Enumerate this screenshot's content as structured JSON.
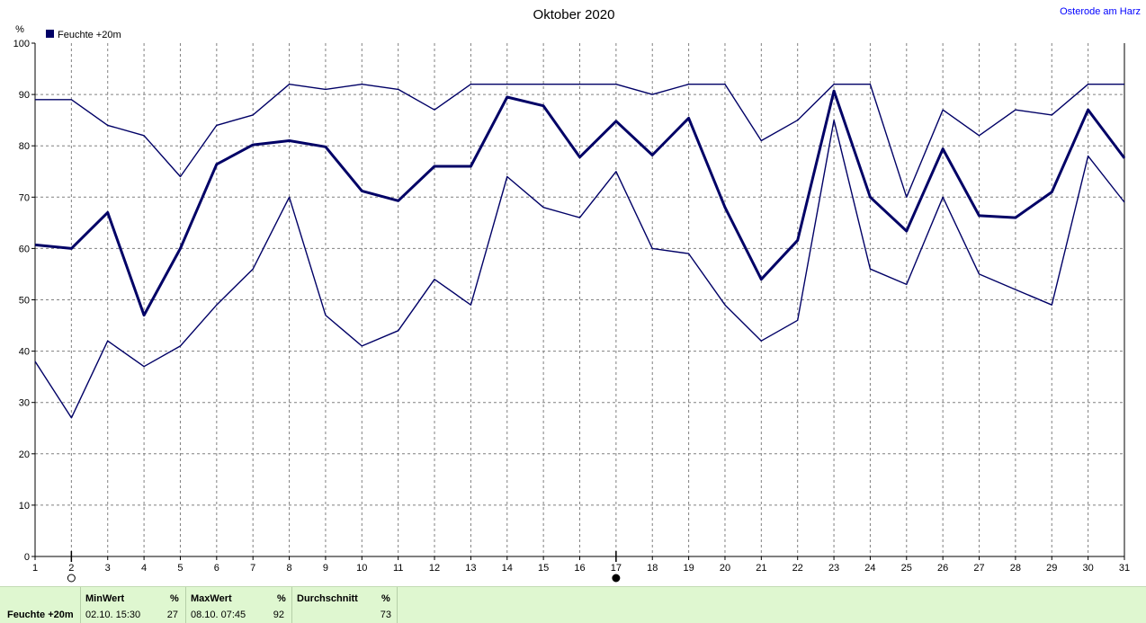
{
  "chart_data": {
    "type": "line",
    "title": "Oktober 2020",
    "location": "Osterode am Harz",
    "ylabel": "%",
    "xlabel": "",
    "ylim": [
      0,
      100
    ],
    "yticks": [
      0,
      10,
      20,
      30,
      40,
      50,
      60,
      70,
      80,
      90,
      100
    ],
    "x": [
      1,
      2,
      3,
      4,
      5,
      6,
      7,
      8,
      9,
      10,
      11,
      12,
      13,
      14,
      15,
      16,
      17,
      18,
      19,
      20,
      21,
      22,
      23,
      24,
      25,
      26,
      27,
      28,
      29,
      30,
      31
    ],
    "grid": true,
    "legend": {
      "position": "top-left",
      "label": "Feuchte +20m",
      "color": "#000066"
    },
    "series": [
      {
        "role": "max",
        "values": [
          89,
          89,
          84,
          82,
          74,
          84,
          86,
          92,
          91,
          92,
          91,
          87,
          92,
          92,
          92,
          92,
          92,
          90,
          92,
          92,
          81,
          85,
          92,
          92,
          70,
          87,
          82,
          87,
          86,
          92,
          92
        ],
        "color": "#000066"
      },
      {
        "role": "mean",
        "values": [
          60.7,
          60,
          67,
          47,
          60,
          76.4,
          80.2,
          81,
          79.8,
          71.2,
          69.3,
          76,
          76,
          89.5,
          87.8,
          77.8,
          84.8,
          78.2,
          85.4,
          68,
          54,
          61.6,
          90.7,
          70,
          63.4,
          79.4,
          66.4,
          66,
          71,
          87,
          77.6
        ],
        "color": "#000066"
      },
      {
        "role": "min",
        "values": [
          38,
          27,
          42,
          37,
          41,
          49,
          56,
          70,
          47,
          41,
          44,
          54,
          49,
          74,
          68,
          66,
          75,
          60,
          59,
          49,
          42,
          46,
          85,
          56,
          53,
          70,
          55,
          52,
          49,
          78,
          69
        ],
        "color": "#000066"
      }
    ],
    "markers": [
      {
        "day": 2,
        "kind": "min",
        "style": "hollow-circle"
      },
      {
        "day": 17,
        "kind": "max",
        "style": "filled-circle"
      }
    ]
  },
  "stats": {
    "series_label": "Feuchte +20m",
    "min": {
      "label": "MinWert",
      "unit": "%",
      "when": "02.10.  15:30",
      "value": "27"
    },
    "max": {
      "label": "MaxWert",
      "unit": "%",
      "when": "08.10.  07:45",
      "value": "92"
    },
    "avg": {
      "label": "Durchschnitt",
      "unit": "%",
      "value": "73"
    }
  }
}
